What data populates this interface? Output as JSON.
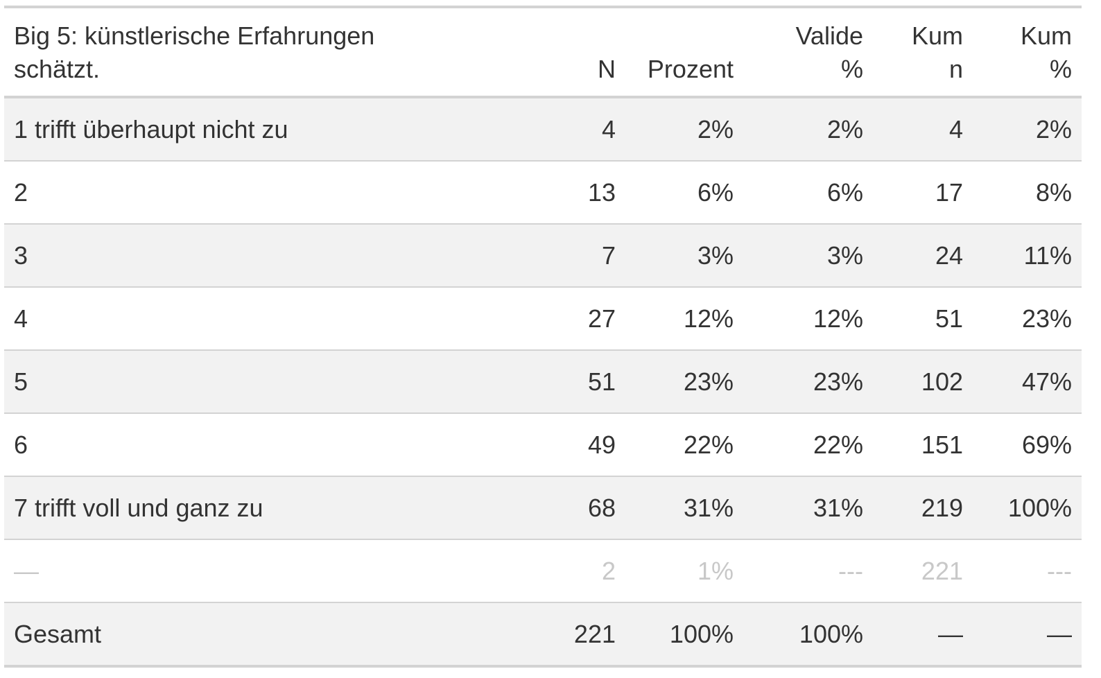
{
  "table": {
    "headers": [
      [
        "Big 5: künstlerische Erfahrungen",
        "schätzt."
      ],
      [
        "",
        "N"
      ],
      [
        "",
        "Prozent"
      ],
      [
        "Valide",
        "%"
      ],
      [
        "Kum",
        "n"
      ],
      [
        "Kum",
        "%"
      ]
    ],
    "rows": [
      [
        "1 trifft überhaupt nicht zu",
        "4",
        "2%",
        "2%",
        "4",
        "2%"
      ],
      [
        "2",
        "13",
        "6%",
        "6%",
        "17",
        "8%"
      ],
      [
        "3",
        "7",
        "3%",
        "3%",
        "24",
        "11%"
      ],
      [
        "4",
        "27",
        "12%",
        "12%",
        "51",
        "23%"
      ],
      [
        "5",
        "51",
        "23%",
        "23%",
        "102",
        "47%"
      ],
      [
        "6",
        "49",
        "22%",
        "22%",
        "151",
        "69%"
      ],
      [
        "7 trifft voll und ganz zu",
        "68",
        "31%",
        "31%",
        "219",
        "100%"
      ],
      [
        "—",
        "2",
        "1%",
        "---",
        "221",
        "---"
      ],
      [
        "Gesamt",
        "221",
        "100%",
        "100%",
        "—",
        "—"
      ]
    ]
  }
}
